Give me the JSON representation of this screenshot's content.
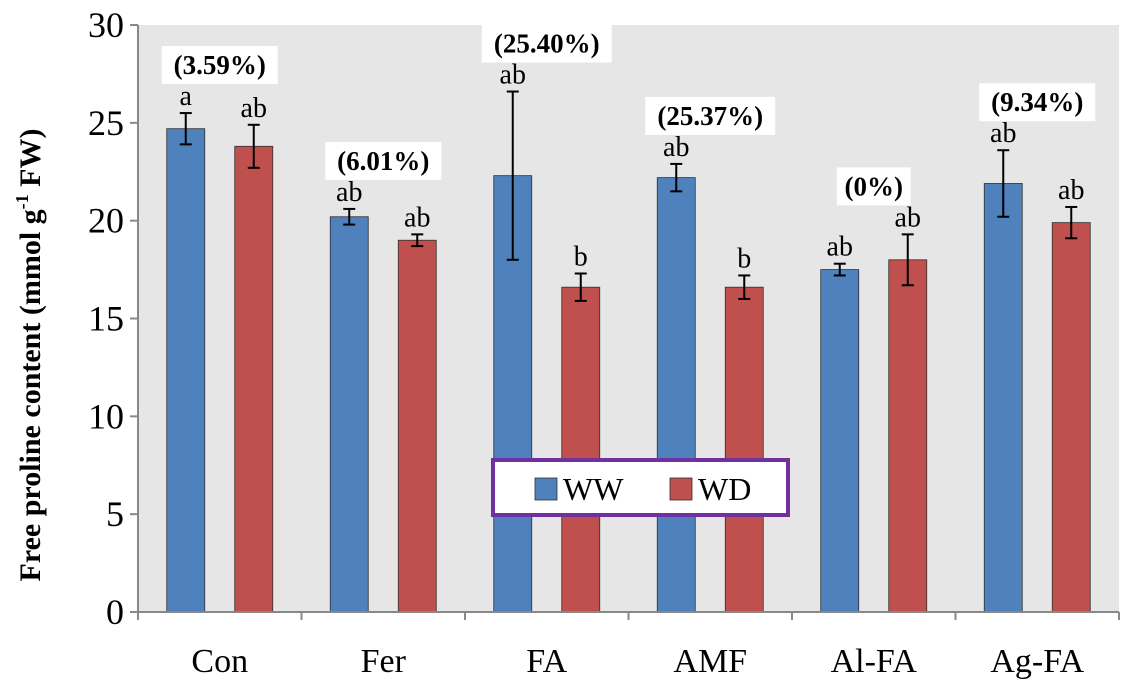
{
  "chart_data": {
    "type": "bar",
    "ylabel": "Free proline content (mmol g",
    "ylabel_sup": "-1",
    "ylabel_tail": " FW)",
    "xlabel": "",
    "ylim": [
      0,
      30
    ],
    "yticks": [
      "0",
      "5",
      "10",
      "15",
      "20",
      "25",
      "30"
    ],
    "categories": [
      "Con",
      "Fer",
      "FA",
      "AMF",
      "Al-FA",
      "Ag-FA"
    ],
    "series": [
      {
        "name": "WW",
        "color": "#4f81bd",
        "values": [
          24.7,
          20.2,
          22.3,
          22.2,
          17.5,
          21.9
        ],
        "errors": [
          0.8,
          0.4,
          4.3,
          0.7,
          0.3,
          1.7
        ],
        "letters": [
          "a",
          "ab",
          "ab",
          "ab",
          "ab",
          "ab"
        ]
      },
      {
        "name": "WD",
        "color": "#c0504d",
        "values": [
          23.8,
          19.0,
          16.6,
          16.6,
          18.0,
          19.9
        ],
        "errors": [
          1.1,
          0.3,
          0.7,
          0.6,
          1.3,
          0.8
        ],
        "letters": [
          "ab",
          "ab",
          "b",
          "b",
          "ab",
          "ab"
        ]
      }
    ],
    "percent_labels": [
      "(3.59%)",
      "(6.01%)",
      "(25.40%)",
      "(25.37%)",
      "(0%)",
      "(9.34%)"
    ],
    "grid": false,
    "legend": "center",
    "plot_background": "#e6e6e6",
    "legend_border_color": "#7030a0"
  }
}
